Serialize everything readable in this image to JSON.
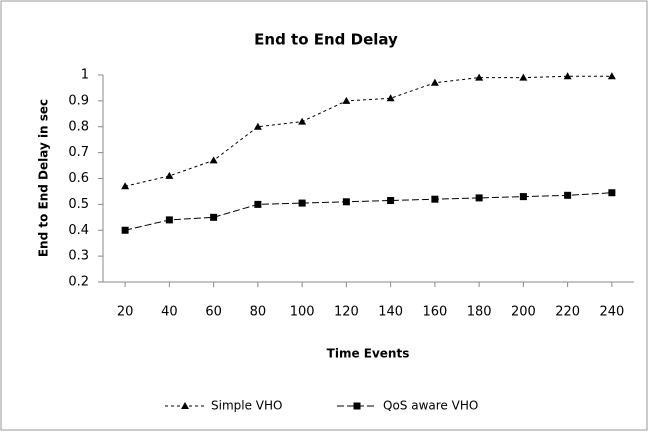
{
  "chart_data": {
    "type": "line",
    "title": "End to End Delay",
    "xlabel": "Time Events",
    "ylabel": "End to End Delay in sec",
    "x": [
      20,
      40,
      60,
      80,
      100,
      120,
      140,
      160,
      180,
      200,
      220,
      240
    ],
    "xlim": [
      10,
      250
    ],
    "xticks": [
      20,
      40,
      60,
      80,
      100,
      120,
      140,
      160,
      180,
      200,
      220,
      240
    ],
    "ylim": [
      0.2,
      1
    ],
    "yticks": [
      0.2,
      0.3,
      0.4,
      0.5,
      0.6,
      0.7,
      0.8,
      0.9,
      1
    ],
    "grid": false,
    "legend": "bottom",
    "series": [
      {
        "name": "Simple VHO",
        "color": "#000000",
        "marker": "triangle",
        "values": [
          0.57,
          0.61,
          0.67,
          0.8,
          0.82,
          0.9,
          0.91,
          0.97,
          0.99,
          0.99,
          0.995,
          0.995
        ]
      },
      {
        "name": "QoS aware VHO",
        "color": "#000000",
        "marker": "square",
        "values": [
          0.4,
          0.44,
          0.45,
          0.5,
          0.505,
          0.51,
          0.515,
          0.52,
          0.525,
          0.53,
          0.535,
          0.545
        ]
      }
    ]
  }
}
